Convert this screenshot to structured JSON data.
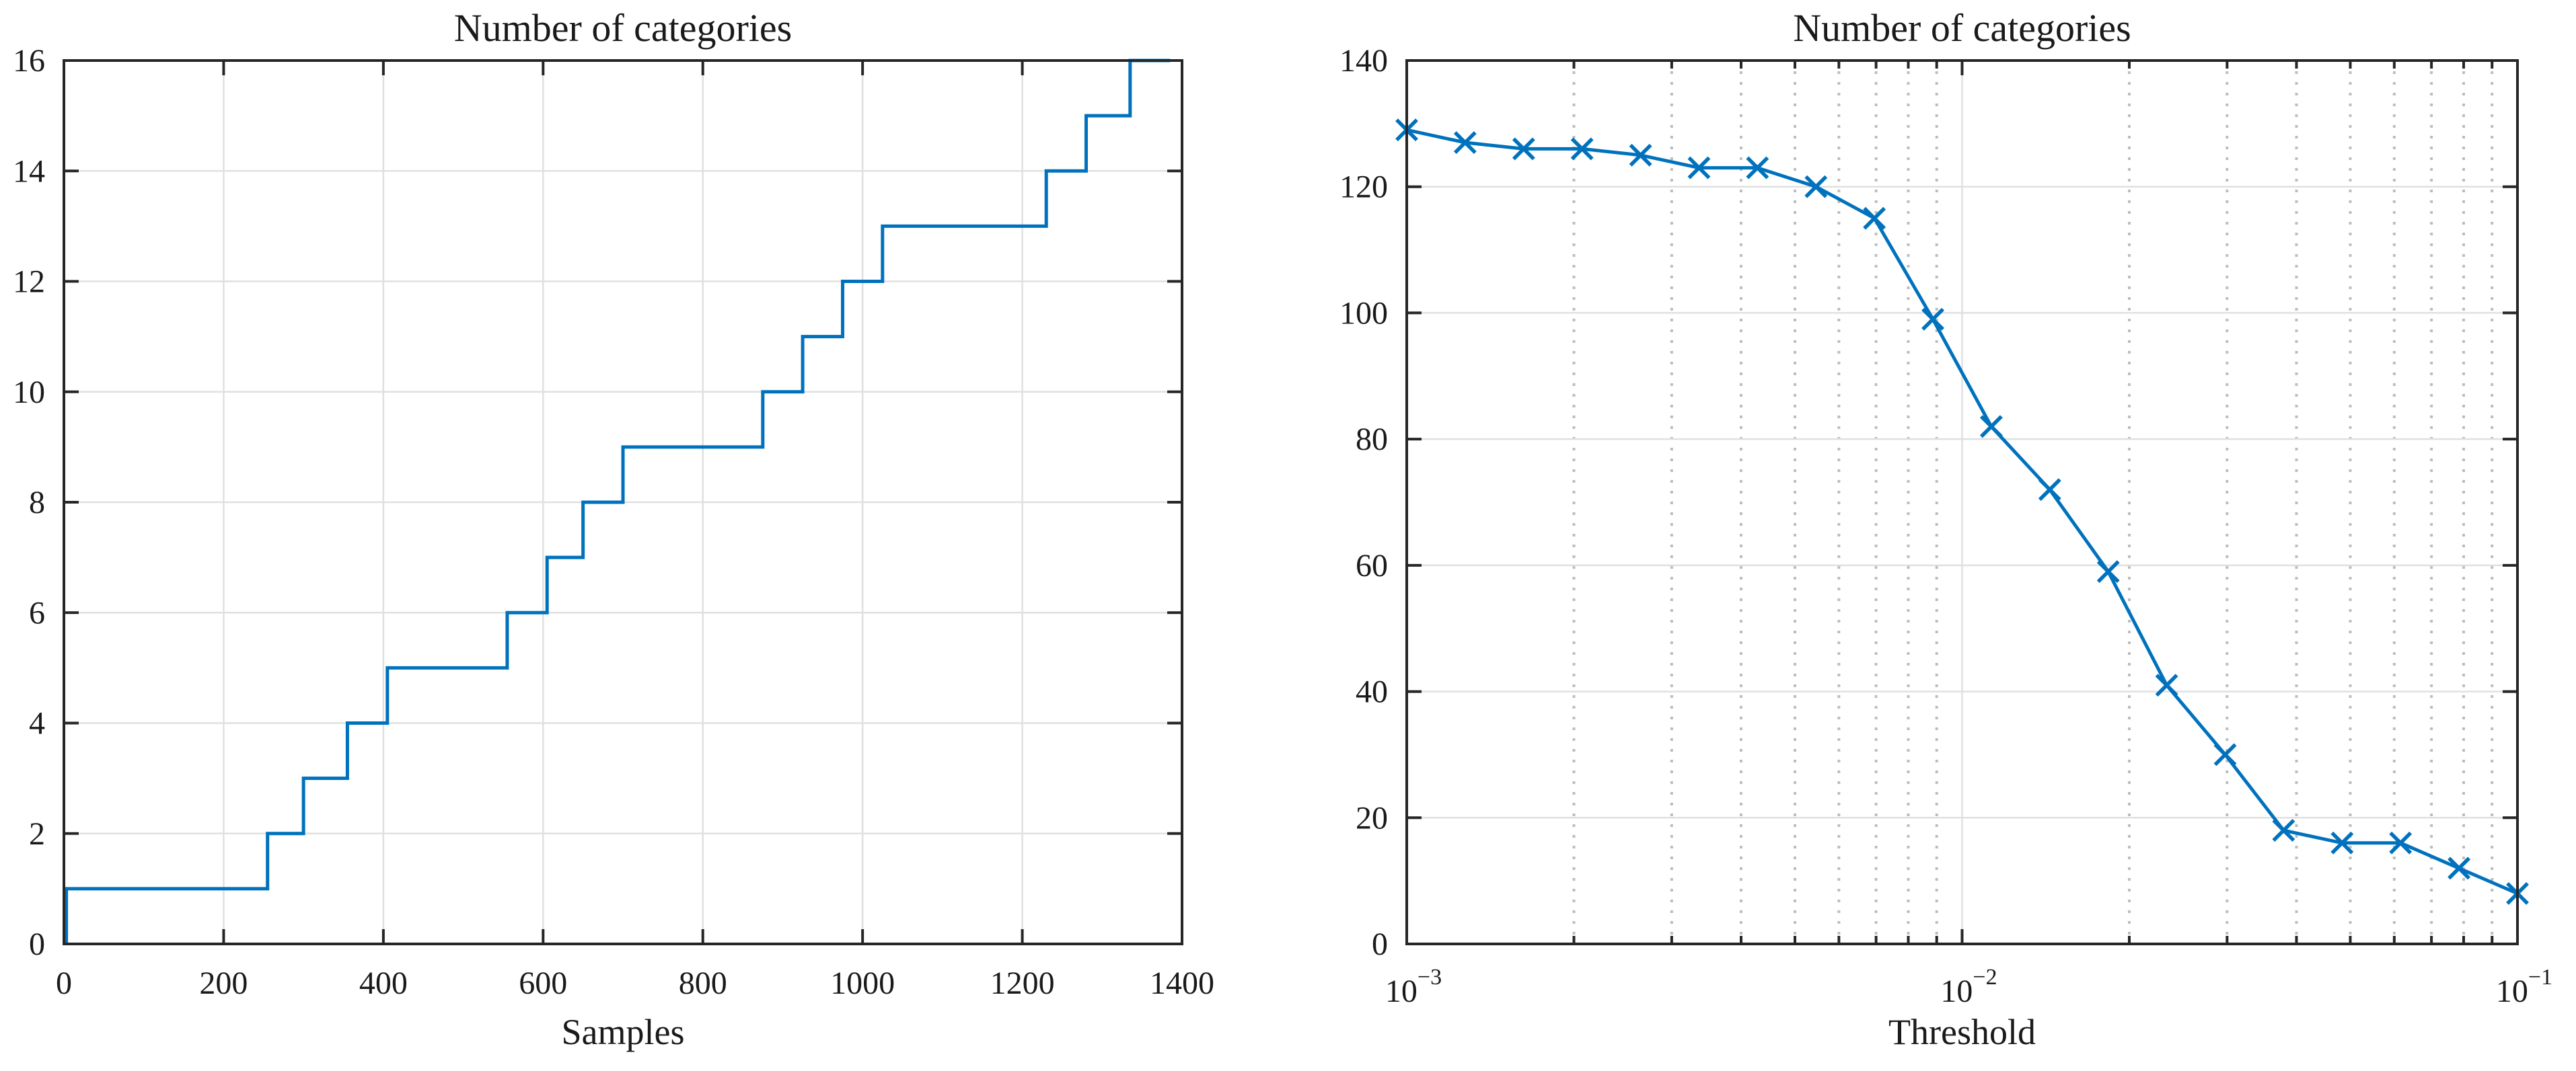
{
  "figure": {
    "background": "#ffffff",
    "line_color": "#0072BD",
    "axis_color": "#262626",
    "text_color": "#1a1a1a",
    "major_grid_color": "#e0e0e0",
    "minor_grid_color": "#bdbdbd"
  },
  "chart_data": [
    {
      "type": "line",
      "variant": "step-post",
      "title": "Number of categories",
      "xlabel": "Samples",
      "ylabel": "",
      "xscale": "linear",
      "xlim": [
        0,
        1400
      ],
      "ylim": [
        0,
        16
      ],
      "xticks": [
        0,
        200,
        400,
        600,
        800,
        1000,
        1200,
        1400
      ],
      "yticks": [
        0,
        2,
        4,
        6,
        8,
        10,
        12,
        14,
        16
      ],
      "grid": "major-solid",
      "legend": "none",
      "marker": "none",
      "step_rise_x": [
        3,
        255,
        300,
        355,
        405,
        555,
        605,
        650,
        700,
        875,
        925,
        975,
        1025,
        1230,
        1280,
        1335
      ],
      "step_level_y": [
        1,
        2,
        3,
        4,
        5,
        6,
        7,
        8,
        9,
        10,
        11,
        12,
        13,
        14,
        15,
        16
      ],
      "step_start_y": 0,
      "step_end_x": 1385
    },
    {
      "type": "line",
      "variant": "line-markers",
      "title": "Number of categories",
      "xlabel": "Threshold",
      "ylabel": "",
      "xscale": "log",
      "xlim": [
        0.001,
        0.1
      ],
      "ylim": [
        0,
        140
      ],
      "xticks": [
        {
          "value": 0.001,
          "base": "10",
          "exp": "−3"
        },
        {
          "value": 0.01,
          "base": "10",
          "exp": "−2"
        },
        {
          "value": 0.1,
          "base": "10",
          "exp": "−1"
        }
      ],
      "yticks": [
        0,
        20,
        40,
        60,
        80,
        100,
        120,
        140
      ],
      "grid": "major-solid",
      "minor_grid": "x-dotted",
      "legend": "none",
      "marker": "x",
      "x": [
        0.001,
        0.001274,
        0.001624,
        0.002069,
        0.002637,
        0.00336,
        0.004281,
        0.005456,
        0.006952,
        0.008859,
        0.011288,
        0.014384,
        0.01833,
        0.023357,
        0.029764,
        0.037927,
        0.048329,
        0.061585,
        0.078476,
        0.1
      ],
      "y": [
        129,
        127,
        126,
        126,
        125,
        123,
        123,
        120,
        115,
        99,
        82,
        72,
        59,
        41,
        30,
        18,
        16,
        16,
        12,
        8
      ]
    }
  ]
}
